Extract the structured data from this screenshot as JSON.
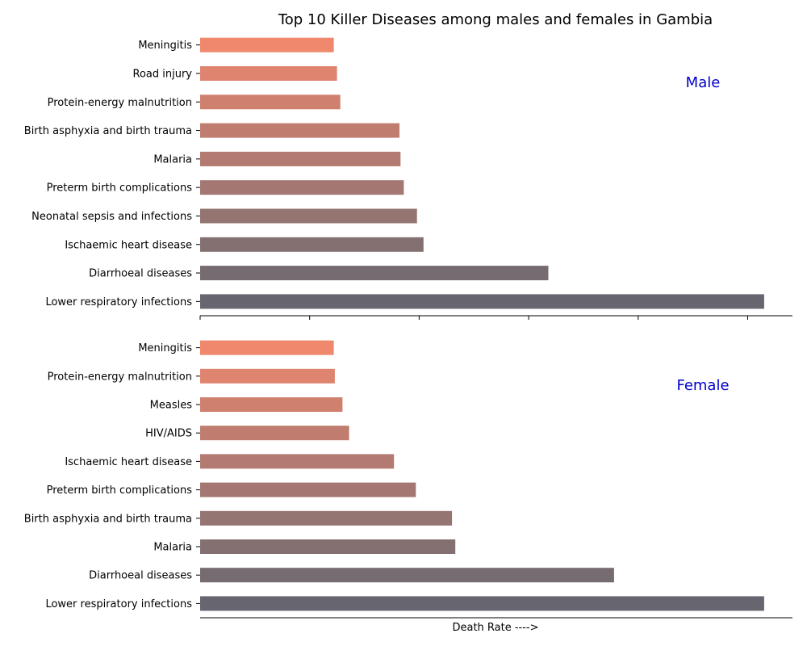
{
  "chart_data": {
    "type": "bar",
    "orientation": "horizontal",
    "title": "Top 10 Killer Diseases among males and females in Gambia",
    "xlabel": "Death Rate ---->",
    "xlim": [
      0,
      5.4
    ],
    "label_color": "#0000cc",
    "colors": [
      "#666570",
      "#766b70",
      "#857071",
      "#947572",
      "#a47773",
      "#b27a70",
      "#c07d6f",
      "#cf816e",
      "#df846f",
      "#ef886d"
    ],
    "panels": [
      {
        "label": "Male",
        "categories": [
          "Lower respiratory infections",
          "Diarrhoeal diseases",
          "Ischaemic heart disease",
          "Neonatal sepsis and infections",
          "Preterm birth complications",
          "Malaria",
          "Birth asphyxia and birth trauma",
          "Protein-energy malnutrition",
          "Road injury",
          "Meningitis"
        ],
        "values": [
          5.15,
          3.18,
          2.04,
          1.98,
          1.86,
          1.83,
          1.82,
          1.28,
          1.25,
          1.22
        ]
      },
      {
        "label": "Female",
        "categories": [
          "Lower respiratory infections",
          "Diarrhoeal diseases",
          "Malaria",
          "Birth asphyxia and birth trauma",
          "Preterm birth complications",
          "Ischaemic heart disease",
          "HIV/AIDS",
          "Measles",
          "Protein-energy malnutrition",
          "Meningitis"
        ],
        "values": [
          5.15,
          3.78,
          2.33,
          2.3,
          1.97,
          1.77,
          1.36,
          1.3,
          1.23,
          1.22
        ]
      }
    ]
  }
}
